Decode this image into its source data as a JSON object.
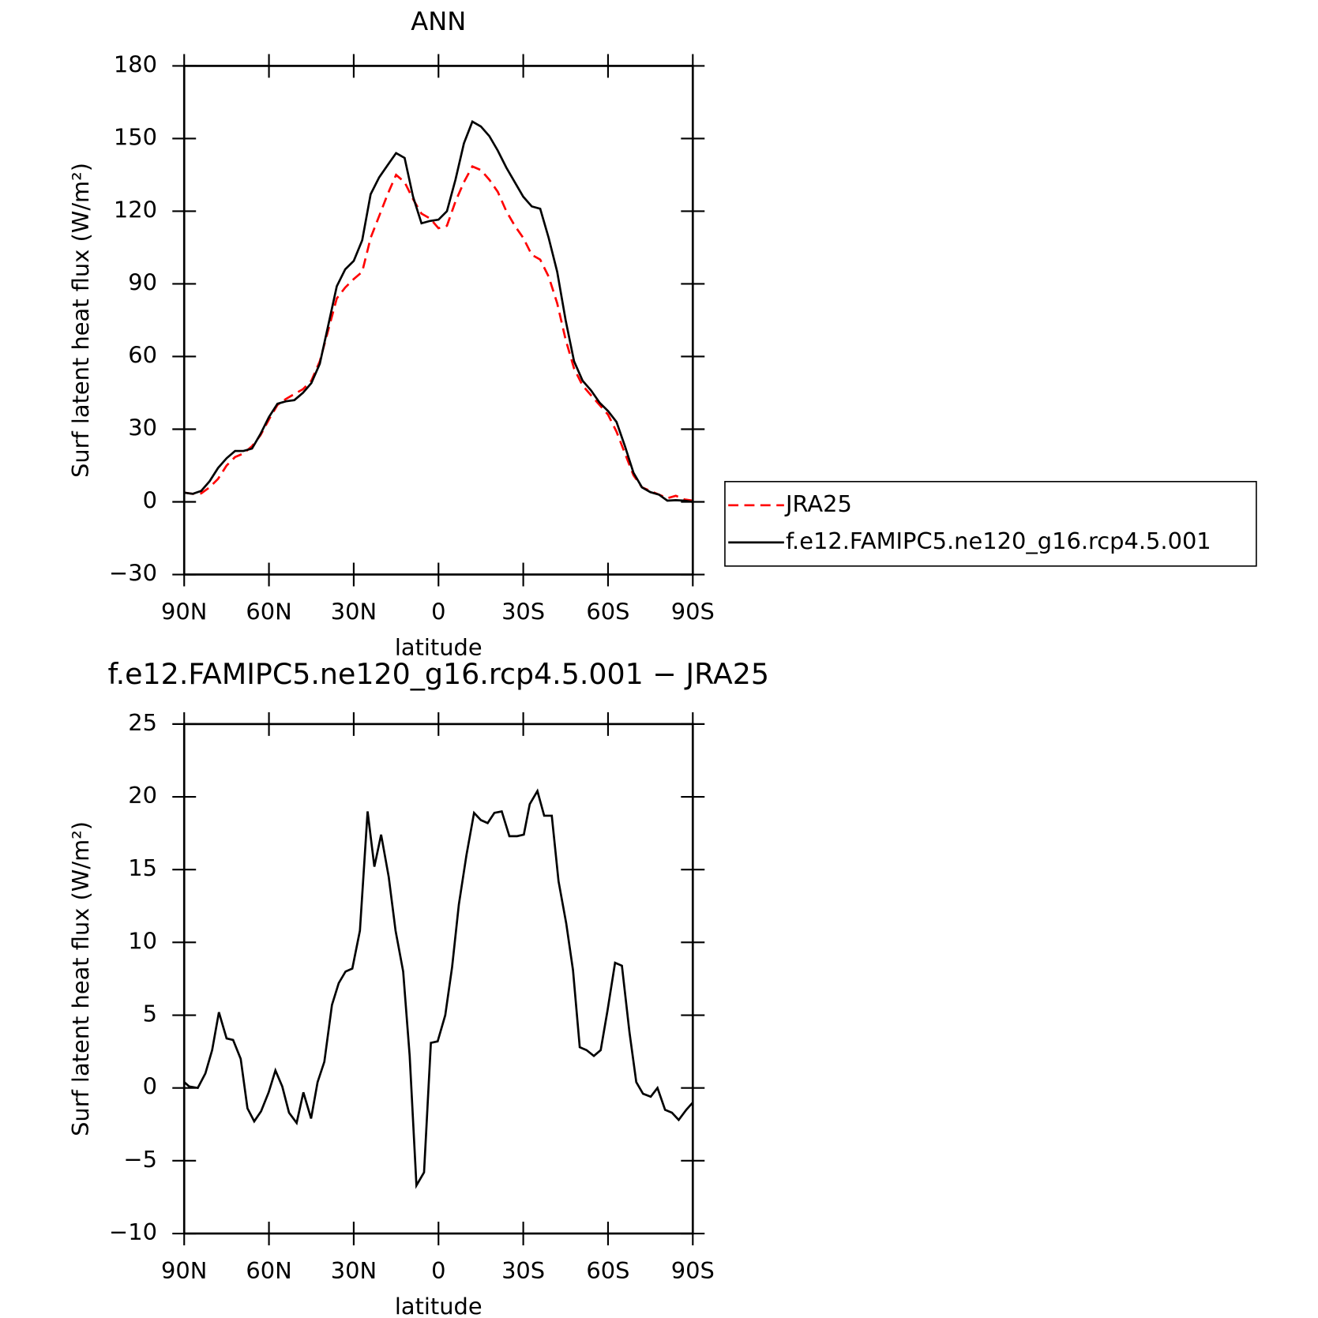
{
  "chart_data": [
    {
      "type": "line",
      "title": "ANN",
      "xlabel": "latitude",
      "ylabel": "Surf latent heat flux (W/m²)",
      "x": [
        90,
        87,
        84,
        81,
        78,
        75,
        72,
        69,
        66,
        63,
        60,
        57,
        54,
        51,
        48,
        45,
        42,
        39,
        36,
        33,
        30,
        27,
        24,
        21,
        18,
        15,
        12,
        9,
        6,
        3,
        0,
        -3,
        -6,
        -9,
        -12,
        -15,
        -18,
        -21,
        -24,
        -27,
        -30,
        -33,
        -36,
        -39,
        -42,
        -45,
        -48,
        -51,
        -54,
        -57,
        -60,
        -63,
        -66,
        -69,
        -72,
        -75,
        -78,
        -81,
        -84,
        -87,
        -90
      ],
      "series": [
        {
          "name": "JRA25",
          "color": "#ff0000",
          "linestyle": "dashed",
          "values": [
            3.8,
            3.3,
            3.5,
            6,
            9.5,
            15,
            18.5,
            20,
            23,
            27.5,
            34,
            40,
            42.5,
            44.5,
            46.5,
            50,
            58,
            71,
            84,
            88.5,
            92,
            95,
            109,
            118,
            127,
            135,
            132,
            125,
            119,
            117,
            113,
            114,
            124,
            132,
            138.5,
            137,
            133,
            128,
            120,
            114,
            109,
            102,
            100,
            93,
            82,
            67,
            55,
            48,
            44,
            40,
            36,
            29,
            20,
            11,
            6,
            4.5,
            3,
            1.5,
            2.5,
            1,
            0.5
          ]
        },
        {
          "name": "f.e12.FAMIPC5.ne120_g16.rcp4.5.001",
          "color": "#000000",
          "linestyle": "solid",
          "values": [
            3.8,
            3.3,
            4.5,
            8.5,
            14,
            18,
            21,
            21,
            22,
            28,
            35,
            40.5,
            41.5,
            42,
            45,
            49,
            57,
            73,
            89,
            96,
            99.5,
            108,
            127,
            134,
            139,
            144,
            142,
            126,
            115,
            116,
            116.5,
            120,
            133,
            148,
            157,
            155,
            151,
            145,
            138,
            132,
            126,
            122,
            121,
            109,
            95,
            75,
            58,
            50,
            46,
            41,
            37.5,
            33,
            23,
            12,
            6,
            4,
            3,
            0.5,
            0.7,
            0.5,
            0
          ]
        }
      ],
      "xlim": [
        90,
        -90
      ],
      "xticks": [
        {
          "value": 90,
          "label": "90N"
        },
        {
          "value": 60,
          "label": "60N"
        },
        {
          "value": 30,
          "label": "30N"
        },
        0,
        {
          "value": -30,
          "label": "30S"
        },
        {
          "value": -60,
          "label": "60S"
        },
        {
          "value": -90,
          "label": "90S"
        }
      ],
      "ylim": [
        -30,
        180
      ],
      "yticks": [
        {
          "value": -30,
          "label": "−30"
        },
        0,
        30,
        60,
        90,
        120,
        150,
        180
      ],
      "legend": "right"
    },
    {
      "type": "line",
      "title": "f.e12.FAMIPC5.ne120_g16.rcp4.5.001 − JRA25",
      "xlabel": "latitude",
      "ylabel": "Surf latent heat flux (W/m²)",
      "x": [
        90,
        88.2,
        85.2,
        82.5,
        80.1,
        77.7,
        75,
        72.7,
        70,
        67.6,
        65.2,
        62.8,
        60.1,
        57.7,
        55.3,
        52.9,
        50.2,
        47.8,
        45.1,
        42.8,
        40.4,
        37.7,
        35.3,
        32.9,
        30.5,
        27.8,
        25.1,
        22.7,
        20.3,
        17.6,
        15.2,
        12.5,
        10.2,
        7.8,
        5.1,
        2.7,
        0.3,
        -2.4,
        -4.8,
        -7.2,
        -9.9,
        -12.6,
        -15,
        -17.4,
        -19.8,
        -22.4,
        -25.1,
        -27.8,
        -30.2,
        -32.3,
        -35,
        -37.4,
        -40.1,
        -42.5,
        -45.2,
        -47.6,
        -50,
        -52.4,
        -55,
        -57.4,
        -59.8,
        -62.5,
        -64.9,
        -67.6,
        -70,
        -72.4,
        -75.1,
        -77.5,
        -80.2,
        -82.6,
        -85,
        -87.7,
        -90
      ],
      "color": "#000000",
      "values": [
        0.4,
        0.1,
        0,
        1,
        2.6,
        5.2,
        3.4,
        3.3,
        2,
        -1.4,
        -2.3,
        -1.6,
        -0.3,
        1.2,
        0.1,
        -1.7,
        -2.4,
        -0.3,
        -2.1,
        0.4,
        1.8,
        5.7,
        7.2,
        8,
        8.2,
        10.8,
        19,
        15.2,
        17.4,
        14.5,
        10.8,
        8,
        2.2,
        -6.7,
        -5.8,
        3.1,
        3.2,
        5,
        8.3,
        12.6,
        16,
        18.9,
        18.4,
        18.2,
        18.9,
        19,
        17.3,
        17.3,
        17.4,
        19.5,
        20.4,
        18.7,
        18.7,
        14.2,
        11.3,
        8.1,
        2.8,
        2.6,
        2.2,
        2.6,
        5.3,
        8.6,
        8.4,
        3.8,
        0.4,
        -0.4,
        -0.6,
        0,
        -1.5,
        -1.7,
        -2.2,
        -1.5,
        -1
      ],
      "xlim": [
        90,
        -90
      ],
      "xticks": [
        {
          "value": 90,
          "label": "90N"
        },
        {
          "value": 60,
          "label": "60N"
        },
        {
          "value": 30,
          "label": "30N"
        },
        0,
        {
          "value": -30,
          "label": "30S"
        },
        {
          "value": -60,
          "label": "60S"
        },
        {
          "value": -90,
          "label": "90S"
        }
      ],
      "ylim": [
        -10,
        25
      ],
      "yticks": [
        {
          "value": -10,
          "label": "−10"
        },
        {
          "value": -5,
          "label": "−5"
        },
        0,
        5,
        10,
        15,
        20,
        25
      ]
    }
  ]
}
